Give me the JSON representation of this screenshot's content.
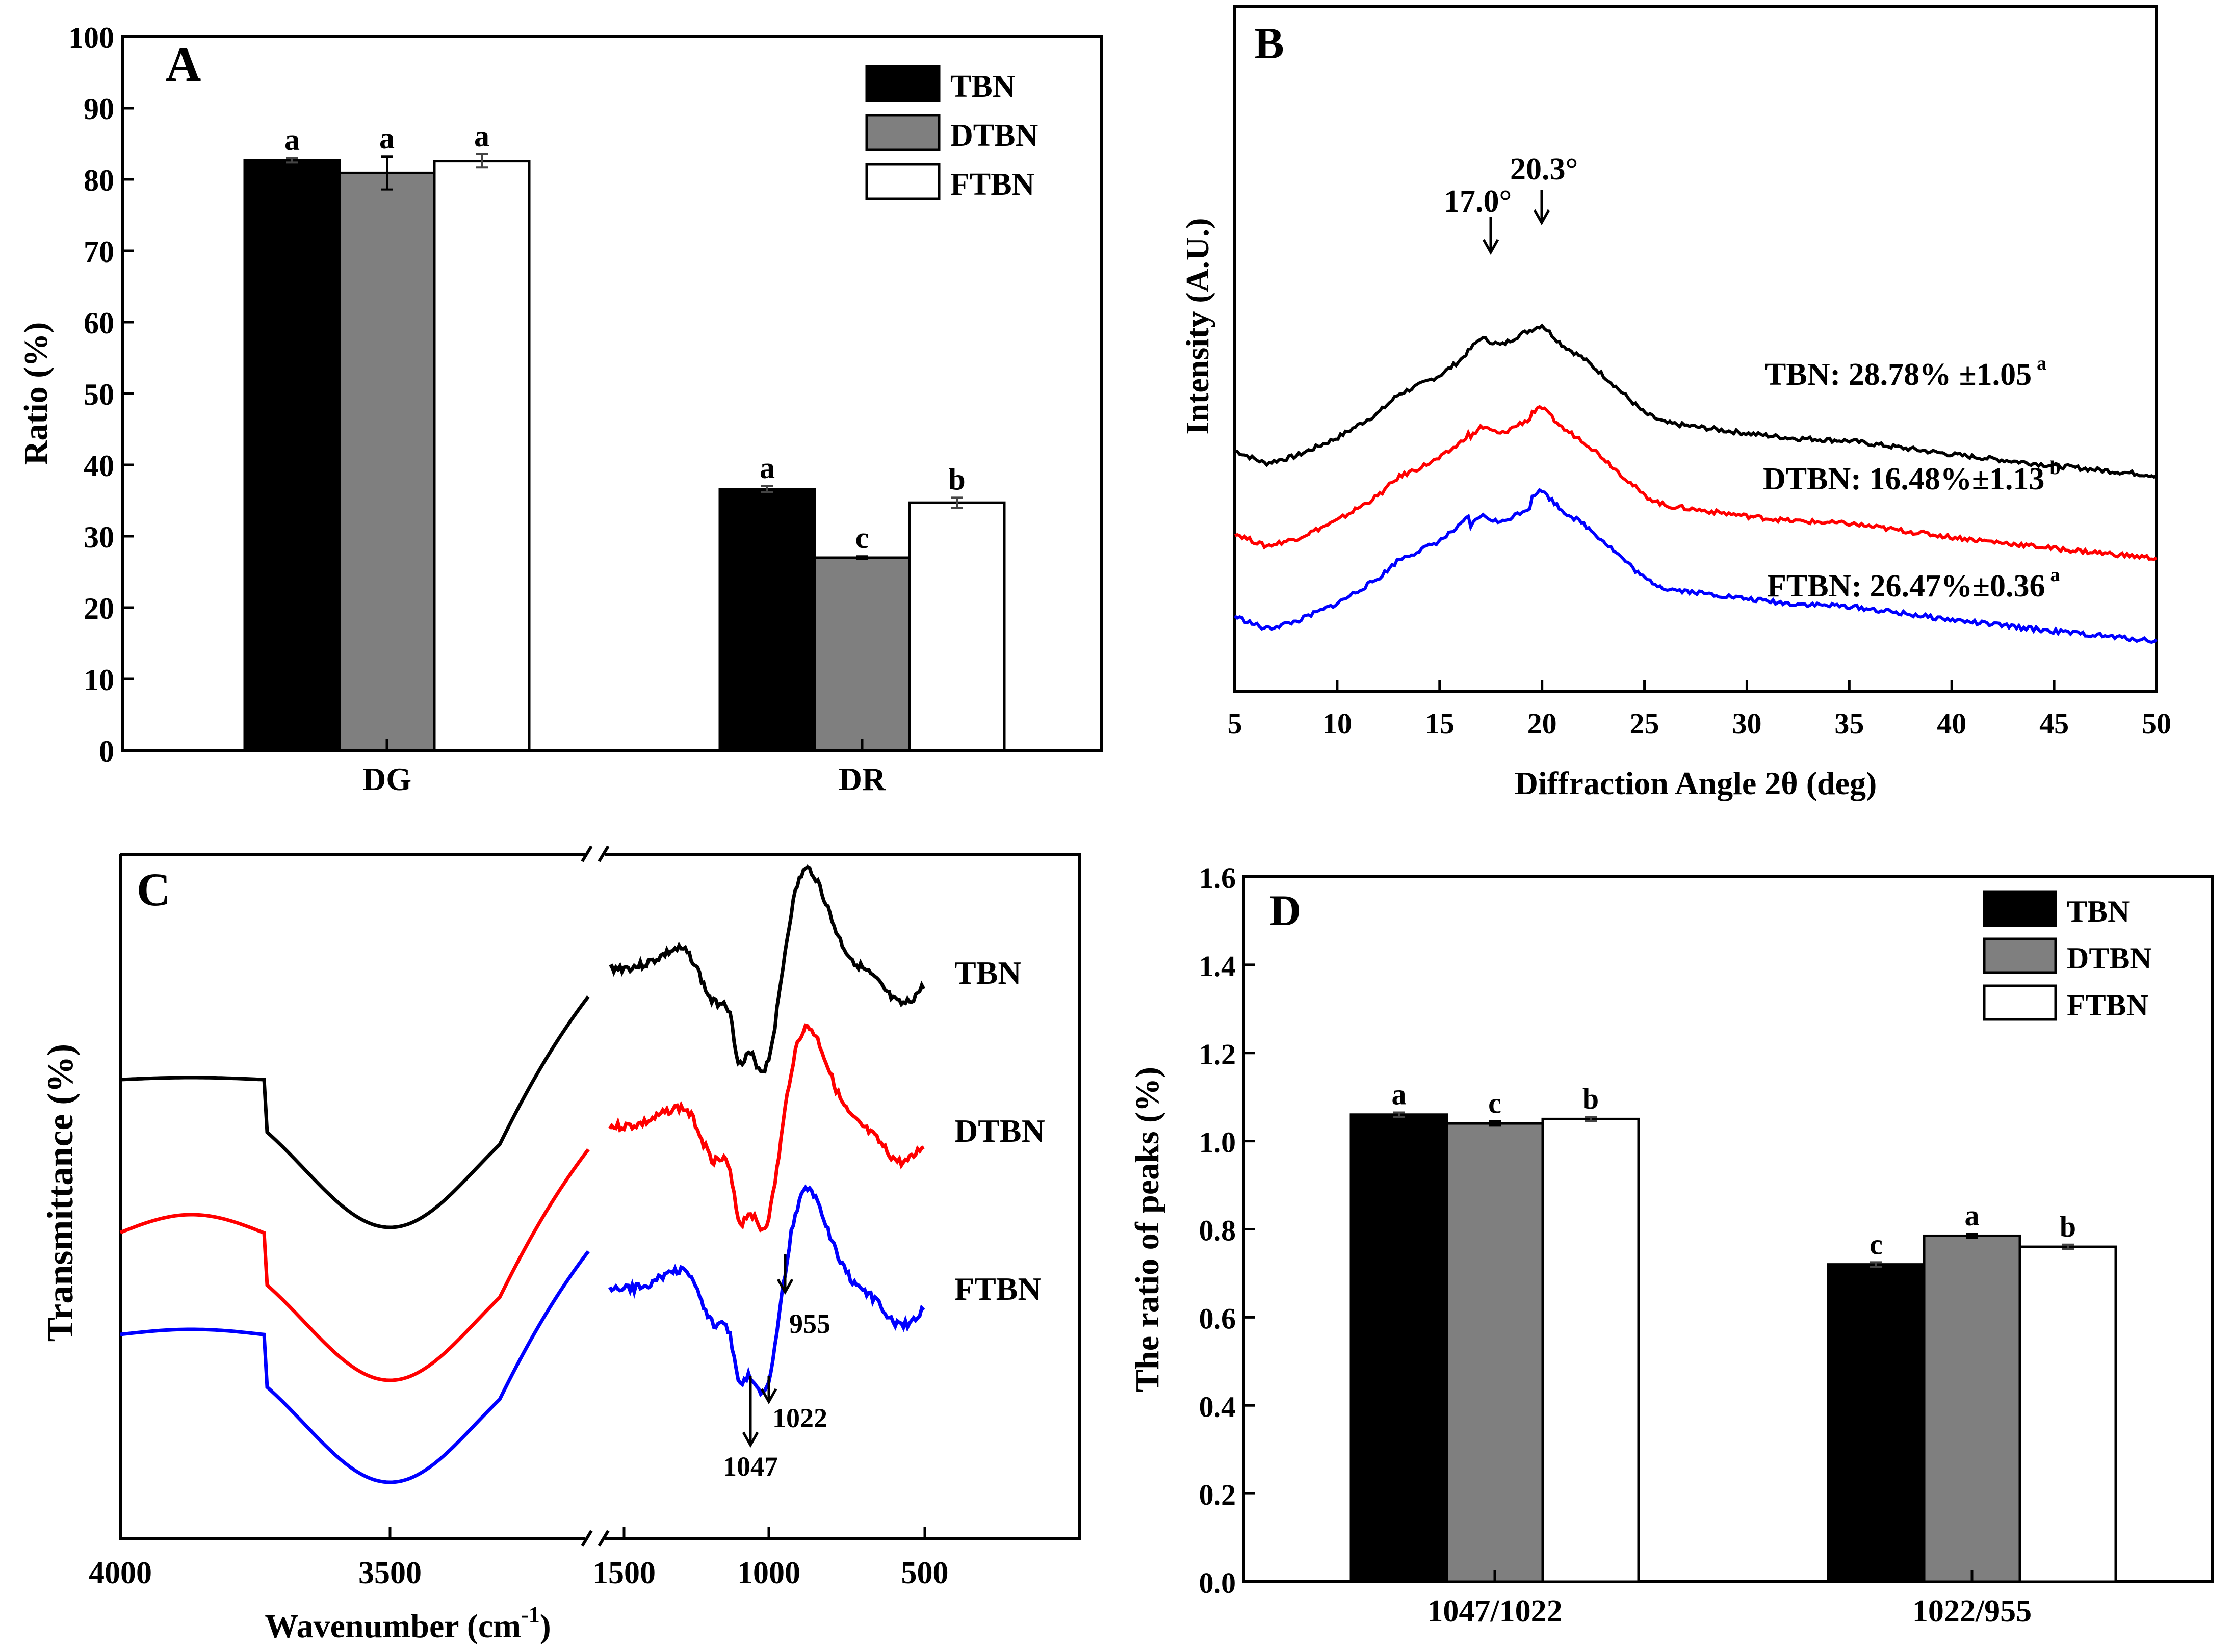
{
  "colors": {
    "TBN": "#000000",
    "DTBN": "#7f7f7f",
    "FTBN": "#ffffff",
    "curve_TBN": "#000000",
    "curve_DTBN": "#ff0000",
    "curve_FTBN": "#0000ff"
  },
  "chart_data": [
    {
      "panel": "A",
      "type": "bar",
      "title": "",
      "categories": [
        "DG",
        "DR"
      ],
      "series": [
        {
          "name": "TBN",
          "values": [
            82.7,
            36.6
          ],
          "errors": [
            0.3,
            0.4
          ],
          "letters": [
            "a",
            "a"
          ]
        },
        {
          "name": "DTBN",
          "values": [
            80.9,
            27.0
          ],
          "errors": [
            2.3,
            0.2
          ],
          "letters": [
            "a",
            "c"
          ]
        },
        {
          "name": "FTBN",
          "values": [
            82.6,
            34.7
          ],
          "errors": [
            0.9,
            0.7
          ],
          "letters": [
            "a",
            "b"
          ]
        }
      ],
      "xlabel": "",
      "ylabel": "Ratio (%)",
      "ylim": [
        0,
        100
      ],
      "yticks": [
        "0",
        "10",
        "20",
        "30",
        "40",
        "50",
        "60",
        "70",
        "80",
        "90",
        "100"
      ],
      "legend": [
        "TBN",
        "DTBN",
        "FTBN"
      ],
      "legend_position": "top-right"
    },
    {
      "panel": "B",
      "type": "line",
      "title": "",
      "xlabel": "Diffraction Angle 2θ (deg)",
      "ylabel": "Intensity (A.U.)",
      "xlim": [
        5,
        50
      ],
      "xticks": [
        "5",
        "10",
        "15",
        "20",
        "25",
        "30",
        "35",
        "40",
        "45",
        "50"
      ],
      "series": [
        {
          "name": "TBN",
          "offset": 2.2,
          "annotation": "TBN: 28.78% ±1.05",
          "sup": "a"
        },
        {
          "name": "DTBN",
          "offset": 1.1,
          "annotation": "DTBN: 16.48%±1.13",
          "sup": "b"
        },
        {
          "name": "FTBN",
          "offset": 0.0,
          "annotation": "FTBN: 26.47%±0.36",
          "sup": "a"
        }
      ],
      "profile": {
        "x": [
          5,
          6.5,
          8,
          10,
          12,
          13,
          14,
          15,
          16,
          17,
          18,
          19,
          20,
          21,
          22,
          23,
          24,
          25,
          26,
          28,
          30,
          32,
          35,
          40,
          45,
          50
        ],
        "y": [
          0.55,
          0.38,
          0.48,
          0.72,
          1.05,
          1.3,
          1.42,
          1.55,
          1.75,
          2.05,
          1.95,
          2.1,
          2.22,
          1.95,
          1.78,
          1.55,
          1.3,
          1.05,
          0.92,
          0.85,
          0.78,
          0.72,
          0.68,
          0.5,
          0.35,
          0.22
        ]
      },
      "peaks": [
        "17.0°",
        "20.3°"
      ]
    },
    {
      "panel": "C",
      "type": "line",
      "title": "",
      "xlabel": "Wavenumber (cm",
      "xlabel_sup": "-1",
      "xlabel_close": ")",
      "ylabel": "Transmittance (%)",
      "xticks": [
        "4000",
        "3500",
        "1500",
        "1000",
        "500"
      ],
      "labels": [
        "TBN",
        "DTBN",
        "FTBN"
      ],
      "markers": [
        "955",
        "1022",
        "1047"
      ]
    },
    {
      "panel": "D",
      "type": "bar",
      "title": "",
      "categories": [
        "1047/1022",
        "1022/955"
      ],
      "series": [
        {
          "name": "TBN",
          "values": [
            1.06,
            0.72
          ],
          "errors": [
            0.005,
            0.005
          ],
          "letters": [
            "a",
            "c"
          ]
        },
        {
          "name": "DTBN",
          "values": [
            1.04,
            0.785
          ],
          "errors": [
            0.005,
            0.005
          ],
          "letters": [
            "c",
            "a"
          ]
        },
        {
          "name": "FTBN",
          "values": [
            1.05,
            0.76
          ],
          "errors": [
            0.005,
            0.005
          ],
          "letters": [
            "b",
            "b"
          ]
        }
      ],
      "xlabel": "",
      "ylabel": "The ratio of peaks (%)",
      "ylim": [
        0,
        1.6
      ],
      "yticks": [
        "0.0",
        "0.2",
        "0.4",
        "0.6",
        "0.8",
        "1.0",
        "1.2",
        "1.4",
        "1.6"
      ],
      "legend": [
        "TBN",
        "DTBN",
        "FTBN"
      ],
      "legend_position": "top-right"
    }
  ]
}
